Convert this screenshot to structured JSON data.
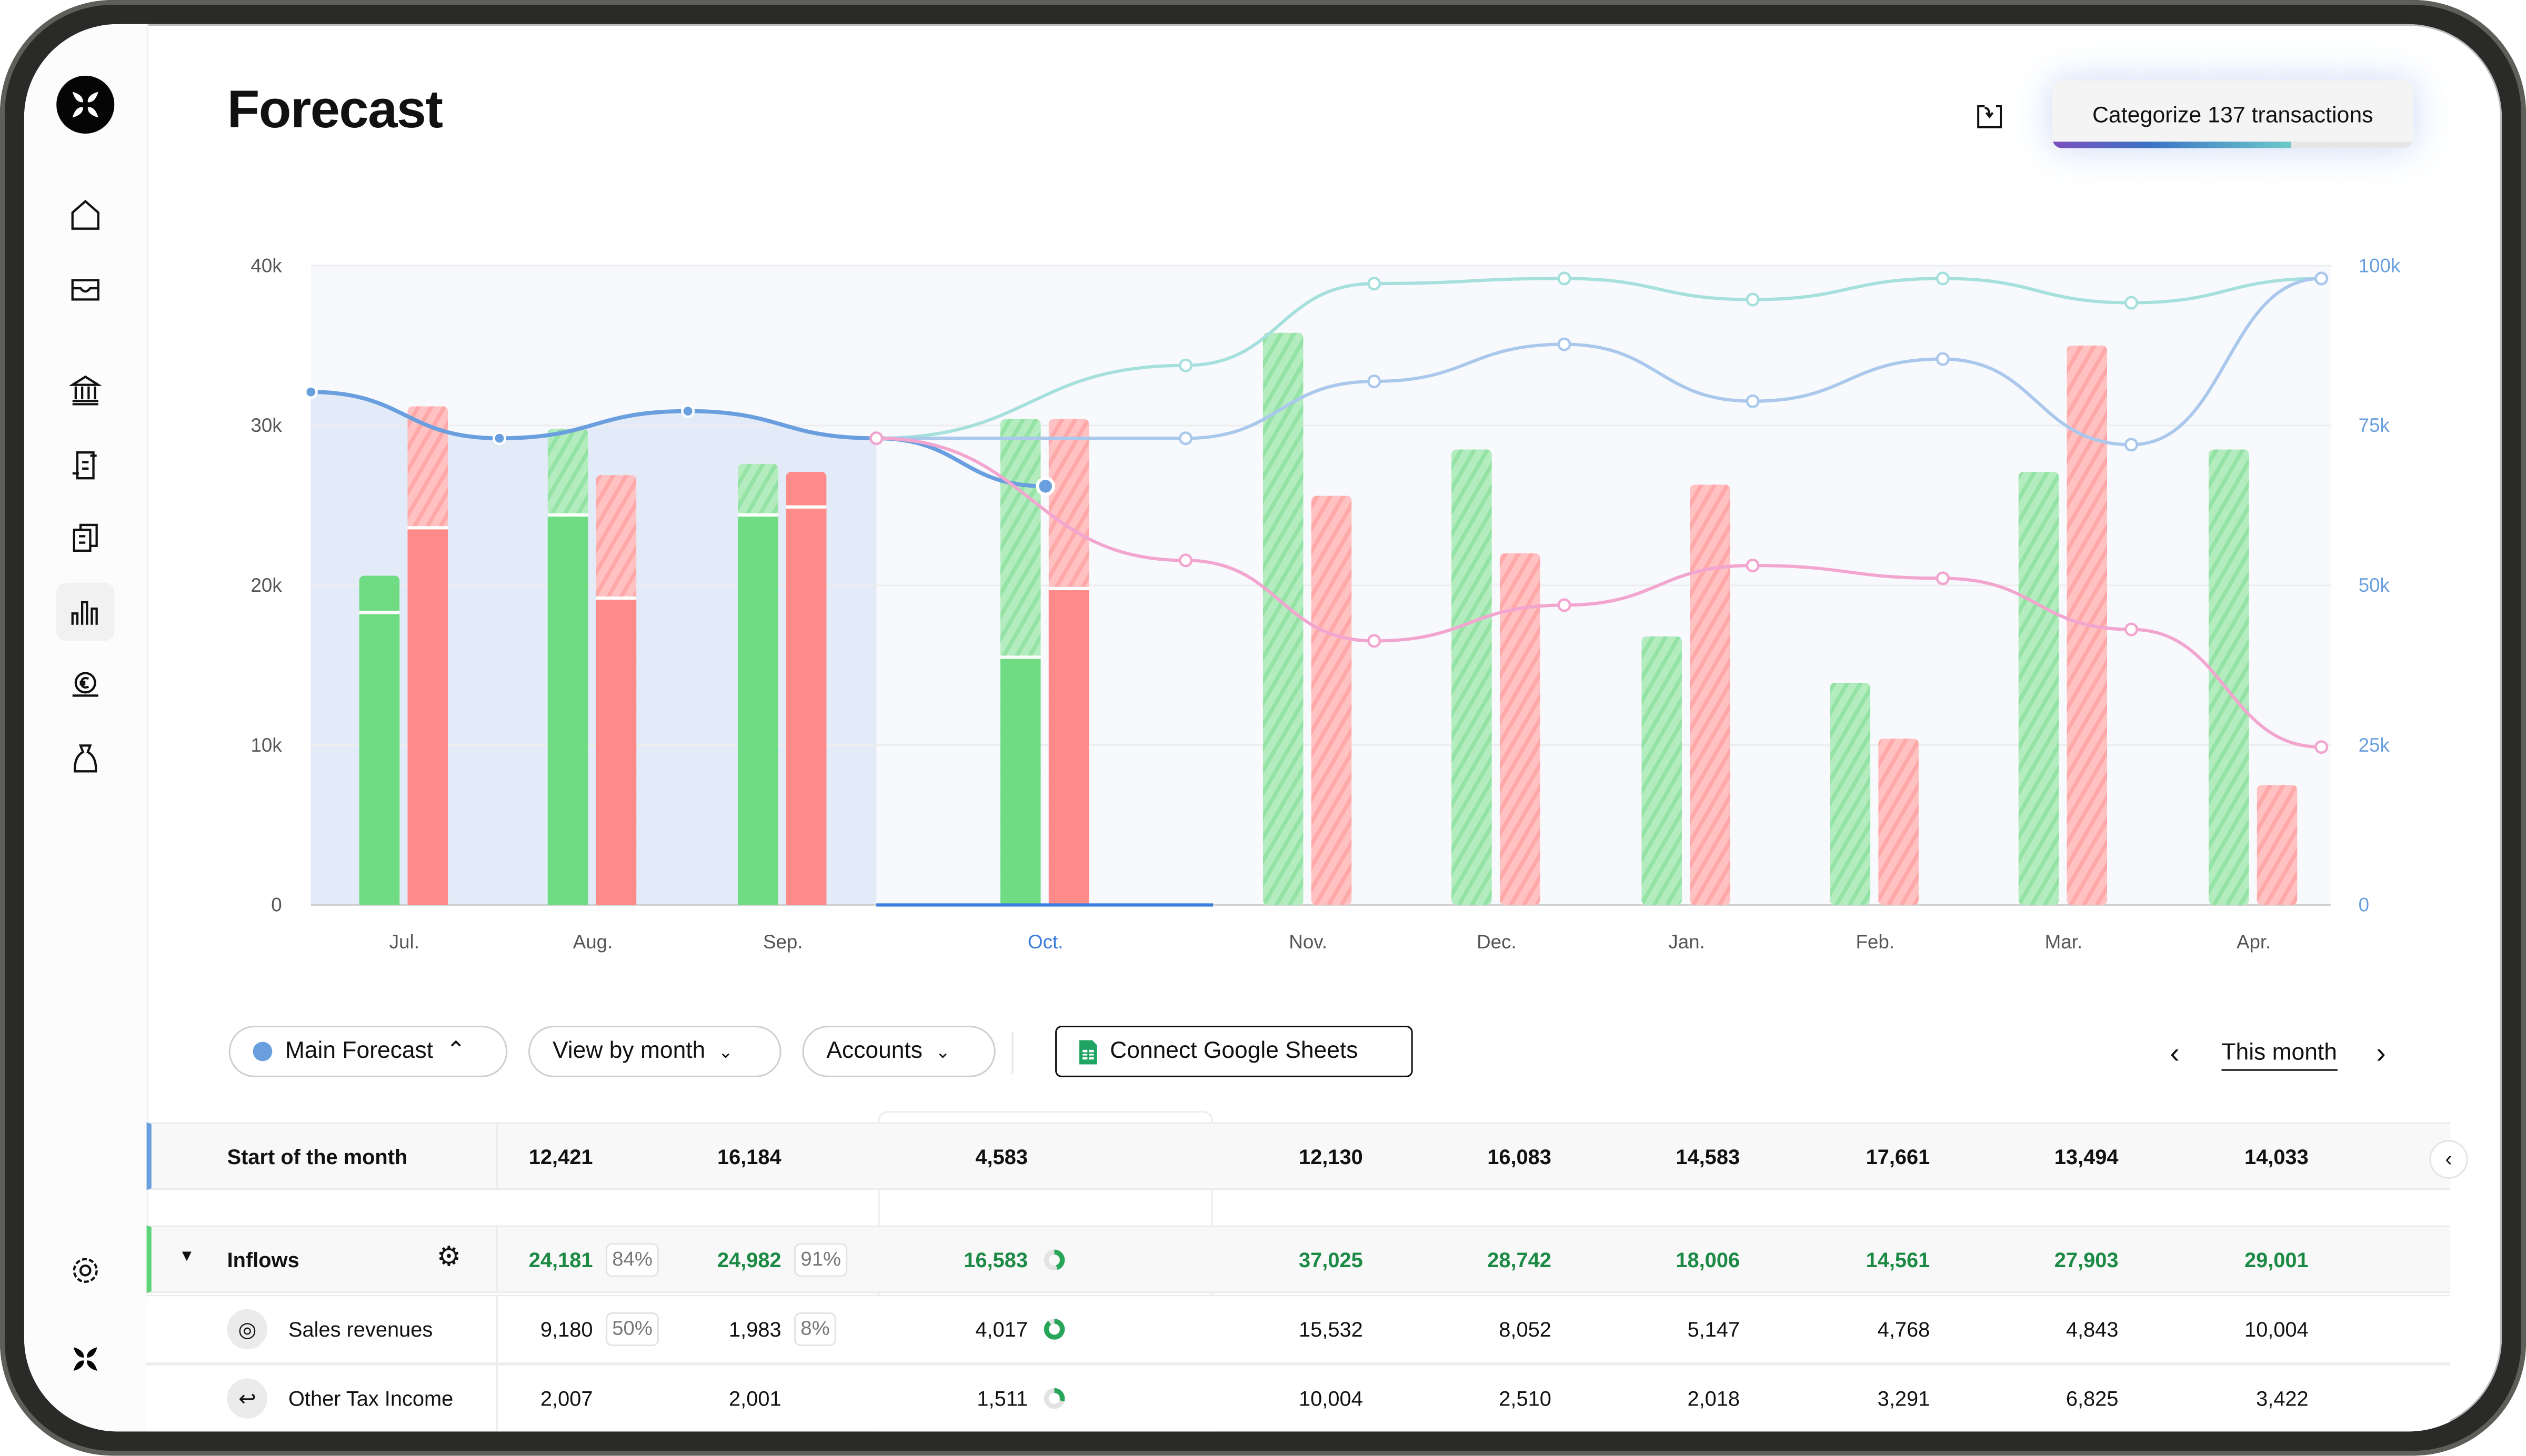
{
  "page": {
    "title": "Forecast"
  },
  "header": {
    "categorize_label": "Categorize 137 transactions",
    "categorize_progress": 0.66,
    "import_icon": "import-icon"
  },
  "sidebar": {
    "items": [
      {
        "name": "home",
        "icon": "home-icon"
      },
      {
        "name": "inbox",
        "icon": "inbox-icon"
      },
      {
        "name": "bank",
        "icon": "bank-icon"
      },
      {
        "name": "transactions",
        "icon": "transactions-icon"
      },
      {
        "name": "documents",
        "icon": "documents-icon"
      },
      {
        "name": "forecast",
        "icon": "bar-chart-icon",
        "active": true
      },
      {
        "name": "payments",
        "icon": "euro-icon"
      },
      {
        "name": "funding",
        "icon": "money-bag-icon"
      }
    ],
    "settings_icon": "gear-icon"
  },
  "chart_data": {
    "type": "bar",
    "categories": [
      "Jul.",
      "Aug.",
      "Sep.",
      "Oct.",
      "Nov.",
      "Dec.",
      "Jan.",
      "Feb.",
      "Mar.",
      "Apr."
    ],
    "current_category": "Oct.",
    "left_axis": {
      "ticks": [
        "0",
        "10k",
        "20k",
        "30k",
        "40k"
      ],
      "ylim": [
        0,
        40000
      ]
    },
    "right_axis": {
      "ticks": [
        "0",
        "25k",
        "50k",
        "75k",
        "100k"
      ],
      "ylim": [
        0,
        100000
      ]
    },
    "grid": true,
    "bars": {
      "inflows": {
        "color": "#6fdc83",
        "actual": [
          18300,
          24400,
          24400,
          15500,
          0,
          0,
          0,
          0,
          0,
          0
        ],
        "total": [
          20600,
          29800,
          27600,
          30400,
          35800,
          28500,
          16800,
          13900,
          27100,
          28500
        ],
        "solid_forecast": [
          true,
          false,
          false,
          false,
          false,
          false,
          false,
          false,
          false,
          false
        ]
      },
      "outflows": {
        "color": "#ff8a8a",
        "actual": [
          23600,
          19200,
          24900,
          19800,
          0,
          0,
          0,
          0,
          0,
          0
        ],
        "total": [
          31200,
          26900,
          27100,
          30400,
          25600,
          22000,
          26300,
          10400,
          35000,
          7500
        ],
        "solid_forecast": [
          false,
          false,
          true,
          false,
          false,
          false,
          false,
          false,
          false,
          false
        ]
      }
    },
    "lines": [
      {
        "axis": "left",
        "color": "#6a9fdf",
        "values": [
          32100,
          29200,
          30900,
          29200,
          26200
        ]
      },
      {
        "axis": "right",
        "color": "#a6e0dc",
        "values": [
          73000,
          84400,
          97200,
          98000,
          94700,
          98000,
          94200,
          98000
        ]
      },
      {
        "axis": "right",
        "color": "#aac8ec",
        "values": [
          73000,
          73000,
          81900,
          87700,
          78800,
          85400,
          72000,
          98000
        ]
      },
      {
        "axis": "right",
        "color": "#f2a6cf",
        "values": [
          73000,
          53900,
          41300,
          46900,
          53100,
          51100,
          43100,
          24700
        ]
      }
    ]
  },
  "controls": {
    "scenario": "Main Forecast",
    "scenario_color": "#6a9fdf",
    "view": "View by month",
    "accounts": "Accounts",
    "sheets": "Connect Google Sheets",
    "period": "This month"
  },
  "table": {
    "start_row": {
      "label": "Start of the month",
      "values": [
        "12,421",
        "16,184",
        "4,583",
        "12,130",
        "16,083",
        "14,583",
        "17,661",
        "13,494",
        "14,033"
      ]
    },
    "inflows_row": {
      "label": "Inflows",
      "values": [
        "24,181",
        "24,982",
        "16,583",
        "37,025",
        "28,742",
        "18,006",
        "14,561",
        "27,903",
        "29,001"
      ],
      "pcts": [
        "84%",
        "91%"
      ],
      "current_progress": 0.45
    },
    "rows": [
      {
        "label": "Sales revenues",
        "icon": "target-icon",
        "values": [
          "9,180",
          "1,983",
          "4,017",
          "15,532",
          "8,052",
          "5,147",
          "4,768",
          "4,843",
          "10,004"
        ],
        "pcts": [
          "50%",
          "8%"
        ],
        "current_progress": 0.9
      },
      {
        "label": "Other Tax Income",
        "icon": "return-arrow-icon",
        "values": [
          "2,007",
          "2,001",
          "1,511",
          "10,004",
          "2,510",
          "2,018",
          "3,291",
          "6,825",
          "3,422"
        ],
        "pcts": [],
        "current_progress": 0.3
      }
    ]
  }
}
